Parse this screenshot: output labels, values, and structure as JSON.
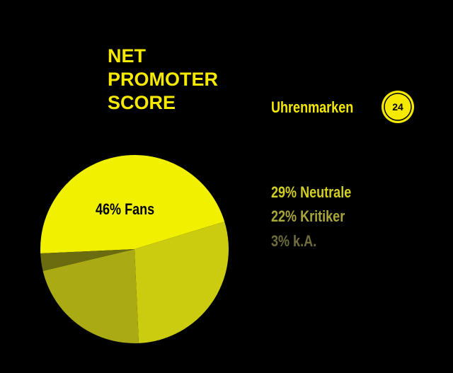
{
  "chart_data": {
    "type": "pie",
    "title_lines": [
      "NET",
      "PROMOTER",
      "SCORE"
    ],
    "subtitle": "Uhrenmarken",
    "badge": "24",
    "values": [
      46,
      29,
      22,
      3
    ],
    "value_labels": [
      "46% Fans",
      "29% Neutrale",
      "22% Kritiker",
      "3% k.A."
    ],
    "colors": [
      "#f0f000",
      "#cbcb10",
      "#aaaa14",
      "#6b6b10"
    ],
    "label_colors": [
      "#000000",
      "#d2cf22",
      "#a9a63a",
      "#6f6d3c"
    ]
  }
}
